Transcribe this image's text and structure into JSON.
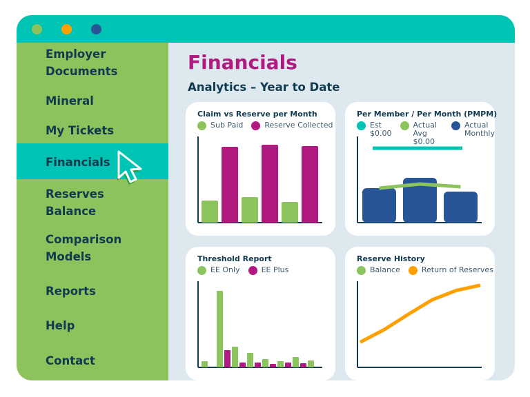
{
  "window": {
    "controls": [
      "close",
      "minimize",
      "maximize"
    ],
    "control_colors": [
      "#8cc35d",
      "#ff9f00",
      "#285597"
    ]
  },
  "sidebar": {
    "items": [
      {
        "label": "Employer\nDocuments"
      },
      {
        "label": "Mineral"
      },
      {
        "label": "My Tickets"
      },
      {
        "label": "Financials",
        "active": true
      },
      {
        "label": "Reserves\nBalance"
      },
      {
        "label": "Comparison\nModels"
      },
      {
        "label": "Reports"
      },
      {
        "label": "Help"
      },
      {
        "label": "Contact"
      }
    ]
  },
  "main": {
    "title": "Financials",
    "subtitle": "Analytics – Year to Date"
  },
  "colors": {
    "teal": "#00c4b3",
    "green": "#8cc35d",
    "magenta": "#b0197f",
    "blue": "#285597",
    "orange": "#ff9f00",
    "navy": "#123a4f"
  },
  "chart_data": [
    {
      "type": "bar",
      "title": "Claim vs Reserve per Month",
      "legend": [
        {
          "label": "Sub Paid",
          "color": "#8cc35d"
        },
        {
          "label": "Reserve Collected",
          "color": "#b0197f"
        }
      ],
      "categories": [
        "1",
        "2",
        "3"
      ],
      "series": [
        {
          "name": "Sub Paid",
          "values": [
            32,
            37,
            30
          ]
        },
        {
          "name": "Reserve Collected",
          "values": [
            110,
            113,
            111
          ]
        }
      ],
      "ylim": [
        0,
        125
      ]
    },
    {
      "type": "bar",
      "title": "Per Member / Per Month (PMPM)",
      "legend": [
        {
          "label": "Est\n$0.00",
          "color": "#00c4b3"
        },
        {
          "label": "Actual\nAvg $0.00",
          "color": "#8cc35d"
        },
        {
          "label": "Actual\nMonthly",
          "color": "#285597"
        }
      ],
      "categories": [
        "1",
        "2",
        "3"
      ],
      "series": [
        {
          "name": "Actual Monthly",
          "values": [
            50,
            65,
            45
          ]
        },
        {
          "name": "Actual Avg",
          "values": [
            50,
            56,
            52
          ]
        },
        {
          "name": "Est",
          "values": [
            108,
            108,
            108
          ]
        }
      ],
      "ylim": [
        0,
        125
      ]
    },
    {
      "type": "bar",
      "title": "Threshold Report",
      "legend": [
        {
          "label": "EE Only",
          "color": "#8cc35d"
        },
        {
          "label": "EE Plus",
          "color": "#b0197f"
        }
      ],
      "categories": [
        "1",
        "2",
        "3",
        "4",
        "5",
        "6",
        "7",
        "8"
      ],
      "series": [
        {
          "name": "EE Only",
          "values": [
            9,
            111,
            30,
            21,
            12,
            9,
            15,
            10
          ]
        },
        {
          "name": "EE Plus",
          "values": [
            0,
            25,
            7,
            7,
            5,
            7,
            6,
            0
          ]
        }
      ],
      "ylim": [
        0,
        125
      ]
    },
    {
      "type": "line",
      "title": "Reserve History",
      "legend": [
        {
          "label": "Balance",
          "color": "#8cc35d"
        },
        {
          "label": "Return of Reserves",
          "color": "#ff9f00"
        }
      ],
      "x": [
        1,
        2,
        3,
        4,
        5,
        6
      ],
      "series": [
        {
          "name": "Return of Reserves",
          "values": [
            38,
            57,
            80,
            102,
            116,
            124
          ]
        }
      ],
      "ylim": [
        0,
        130
      ]
    }
  ]
}
